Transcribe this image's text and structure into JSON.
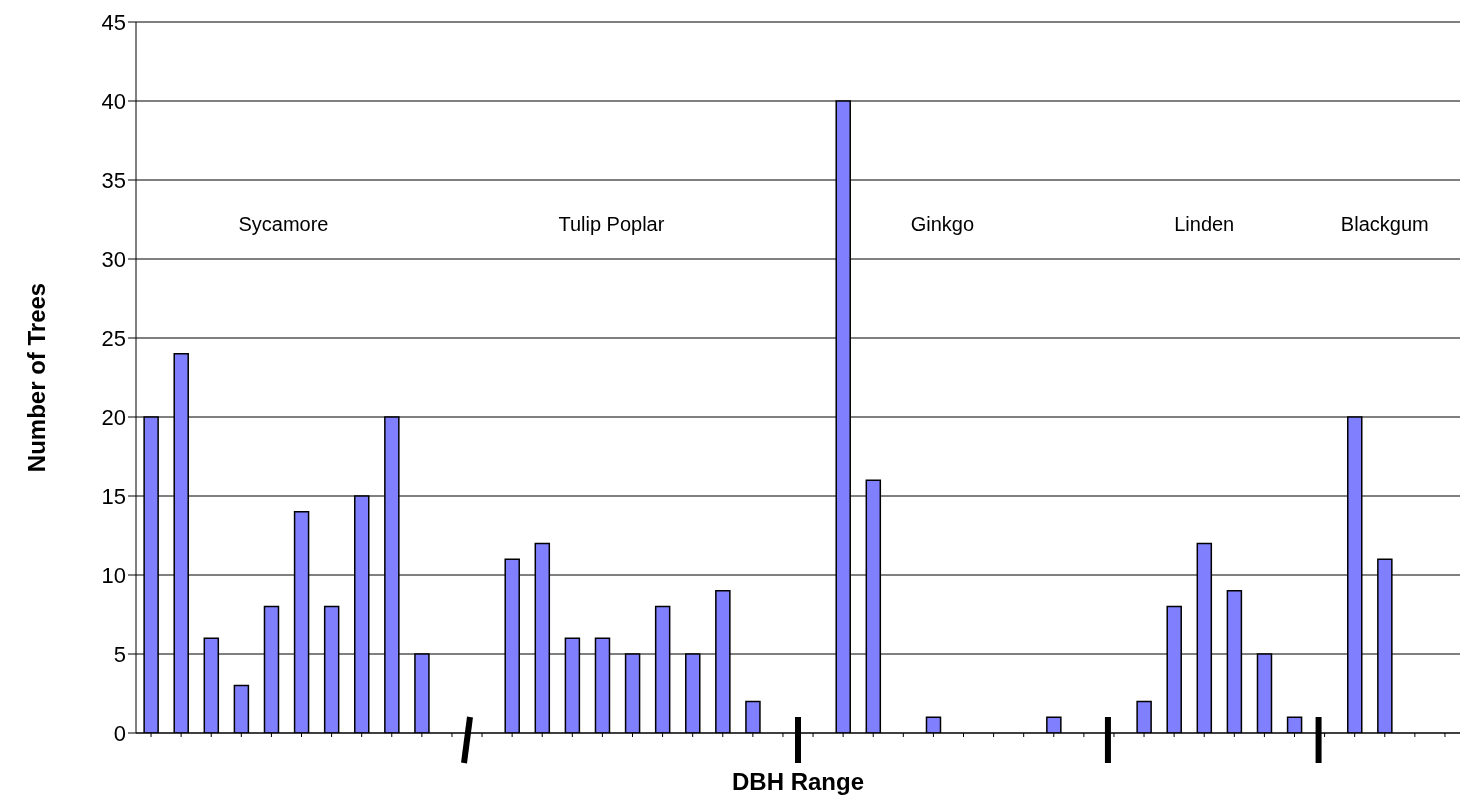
{
  "chart_data": {
    "type": "bar",
    "xlabel": "DBH Range",
    "ylabel": "Number of Trees",
    "categories": [
      null,
      null,
      null,
      null,
      null,
      null,
      null,
      null,
      null,
      null,
      null,
      null,
      null,
      null,
      null,
      null,
      null,
      null,
      null,
      null,
      null,
      null,
      null,
      null,
      null,
      null,
      null,
      null,
      null,
      null,
      null,
      null,
      null,
      null,
      null,
      null,
      null,
      null,
      null,
      null,
      null,
      null,
      null,
      null
    ],
    "values": [
      20,
      24,
      6,
      3,
      8,
      14,
      8,
      15,
      20,
      5,
      0,
      0,
      11,
      12,
      6,
      6,
      5,
      8,
      5,
      9,
      2,
      0,
      0,
      40,
      16,
      0,
      1,
      0,
      0,
      0,
      1,
      0,
      0,
      2,
      8,
      12,
      9,
      5,
      1,
      0,
      20,
      11,
      0,
      0
    ],
    "color": "#8080ff",
    "ylim": [
      0,
      45
    ],
    "yticks": [
      0,
      5,
      10,
      15,
      20,
      25,
      30,
      35,
      40,
      45
    ],
    "grid": "y",
    "legend": false,
    "annotations": [
      "Sycamore",
      "Tulip Poplar",
      "Ginkgo",
      "Linden",
      "Blackgum"
    ]
  }
}
